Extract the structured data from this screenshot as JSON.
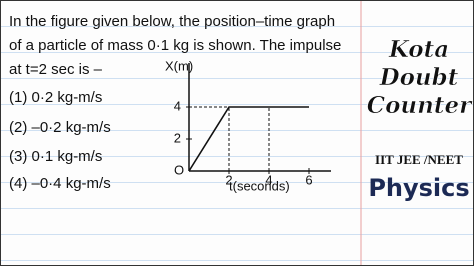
{
  "question": {
    "lines": [
      "In the figure given below, the position–time graph",
      "of a particle of mass 0·1 kg is shown. The impulse",
      "at t=2 sec is –"
    ],
    "options": [
      "(1) 0·2 kg-m/s",
      "(2) –0·2 kg-m/s",
      "(3) 0·1 kg-m/s",
      "(4) –0·4 kg-m/s"
    ]
  },
  "graph": {
    "y_label": "X(m)",
    "x_label": "t(seconds)",
    "origin_label": "O",
    "xticks": [
      2,
      4,
      6
    ],
    "yticks": [
      2,
      4
    ],
    "x": [
      0,
      2,
      6
    ],
    "y": [
      0,
      4,
      4
    ]
  },
  "brand": {
    "lines": [
      "Kota",
      "Doubt",
      "Counter"
    ],
    "exam": "IIT JEE /NEET",
    "subject": "Physics"
  }
}
